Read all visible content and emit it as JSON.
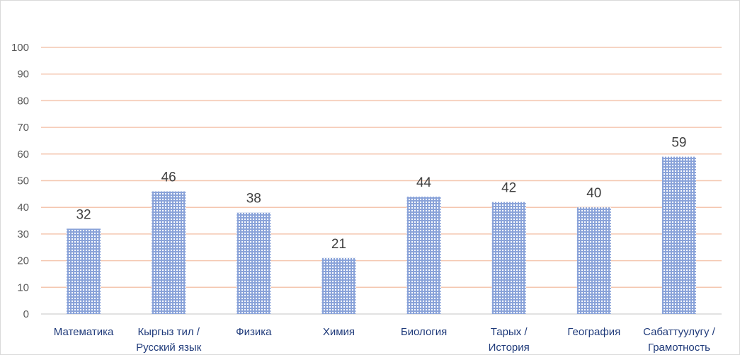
{
  "chart_data": {
    "type": "bar",
    "title": "",
    "xlabel": "",
    "ylabel": "",
    "ylim": [
      0,
      100
    ],
    "yticks": [
      0,
      10,
      20,
      30,
      40,
      50,
      60,
      70,
      80,
      90,
      100
    ],
    "grid": true,
    "legend": "none",
    "data_labels": true,
    "categories": [
      [
        "Математика"
      ],
      [
        "Кыргыз тил /",
        "Русский язык"
      ],
      [
        "Физика"
      ],
      [
        "Химия"
      ],
      [
        "Биология"
      ],
      [
        "Тарых /",
        "История"
      ],
      [
        "География"
      ],
      [
        "Сабаттуулугу /",
        "Грамотность"
      ]
    ],
    "values": [
      32,
      46,
      38,
      21,
      44,
      42,
      40,
      59
    ],
    "colors": {
      "bar": "#8aa3d9",
      "bar_pattern": "#ffffff",
      "gridline": "#f4c7b0",
      "axis": "#d9d9d9",
      "tick_text": "#595959",
      "label_text": "#404040",
      "category_text": "#1f3a7a"
    }
  }
}
